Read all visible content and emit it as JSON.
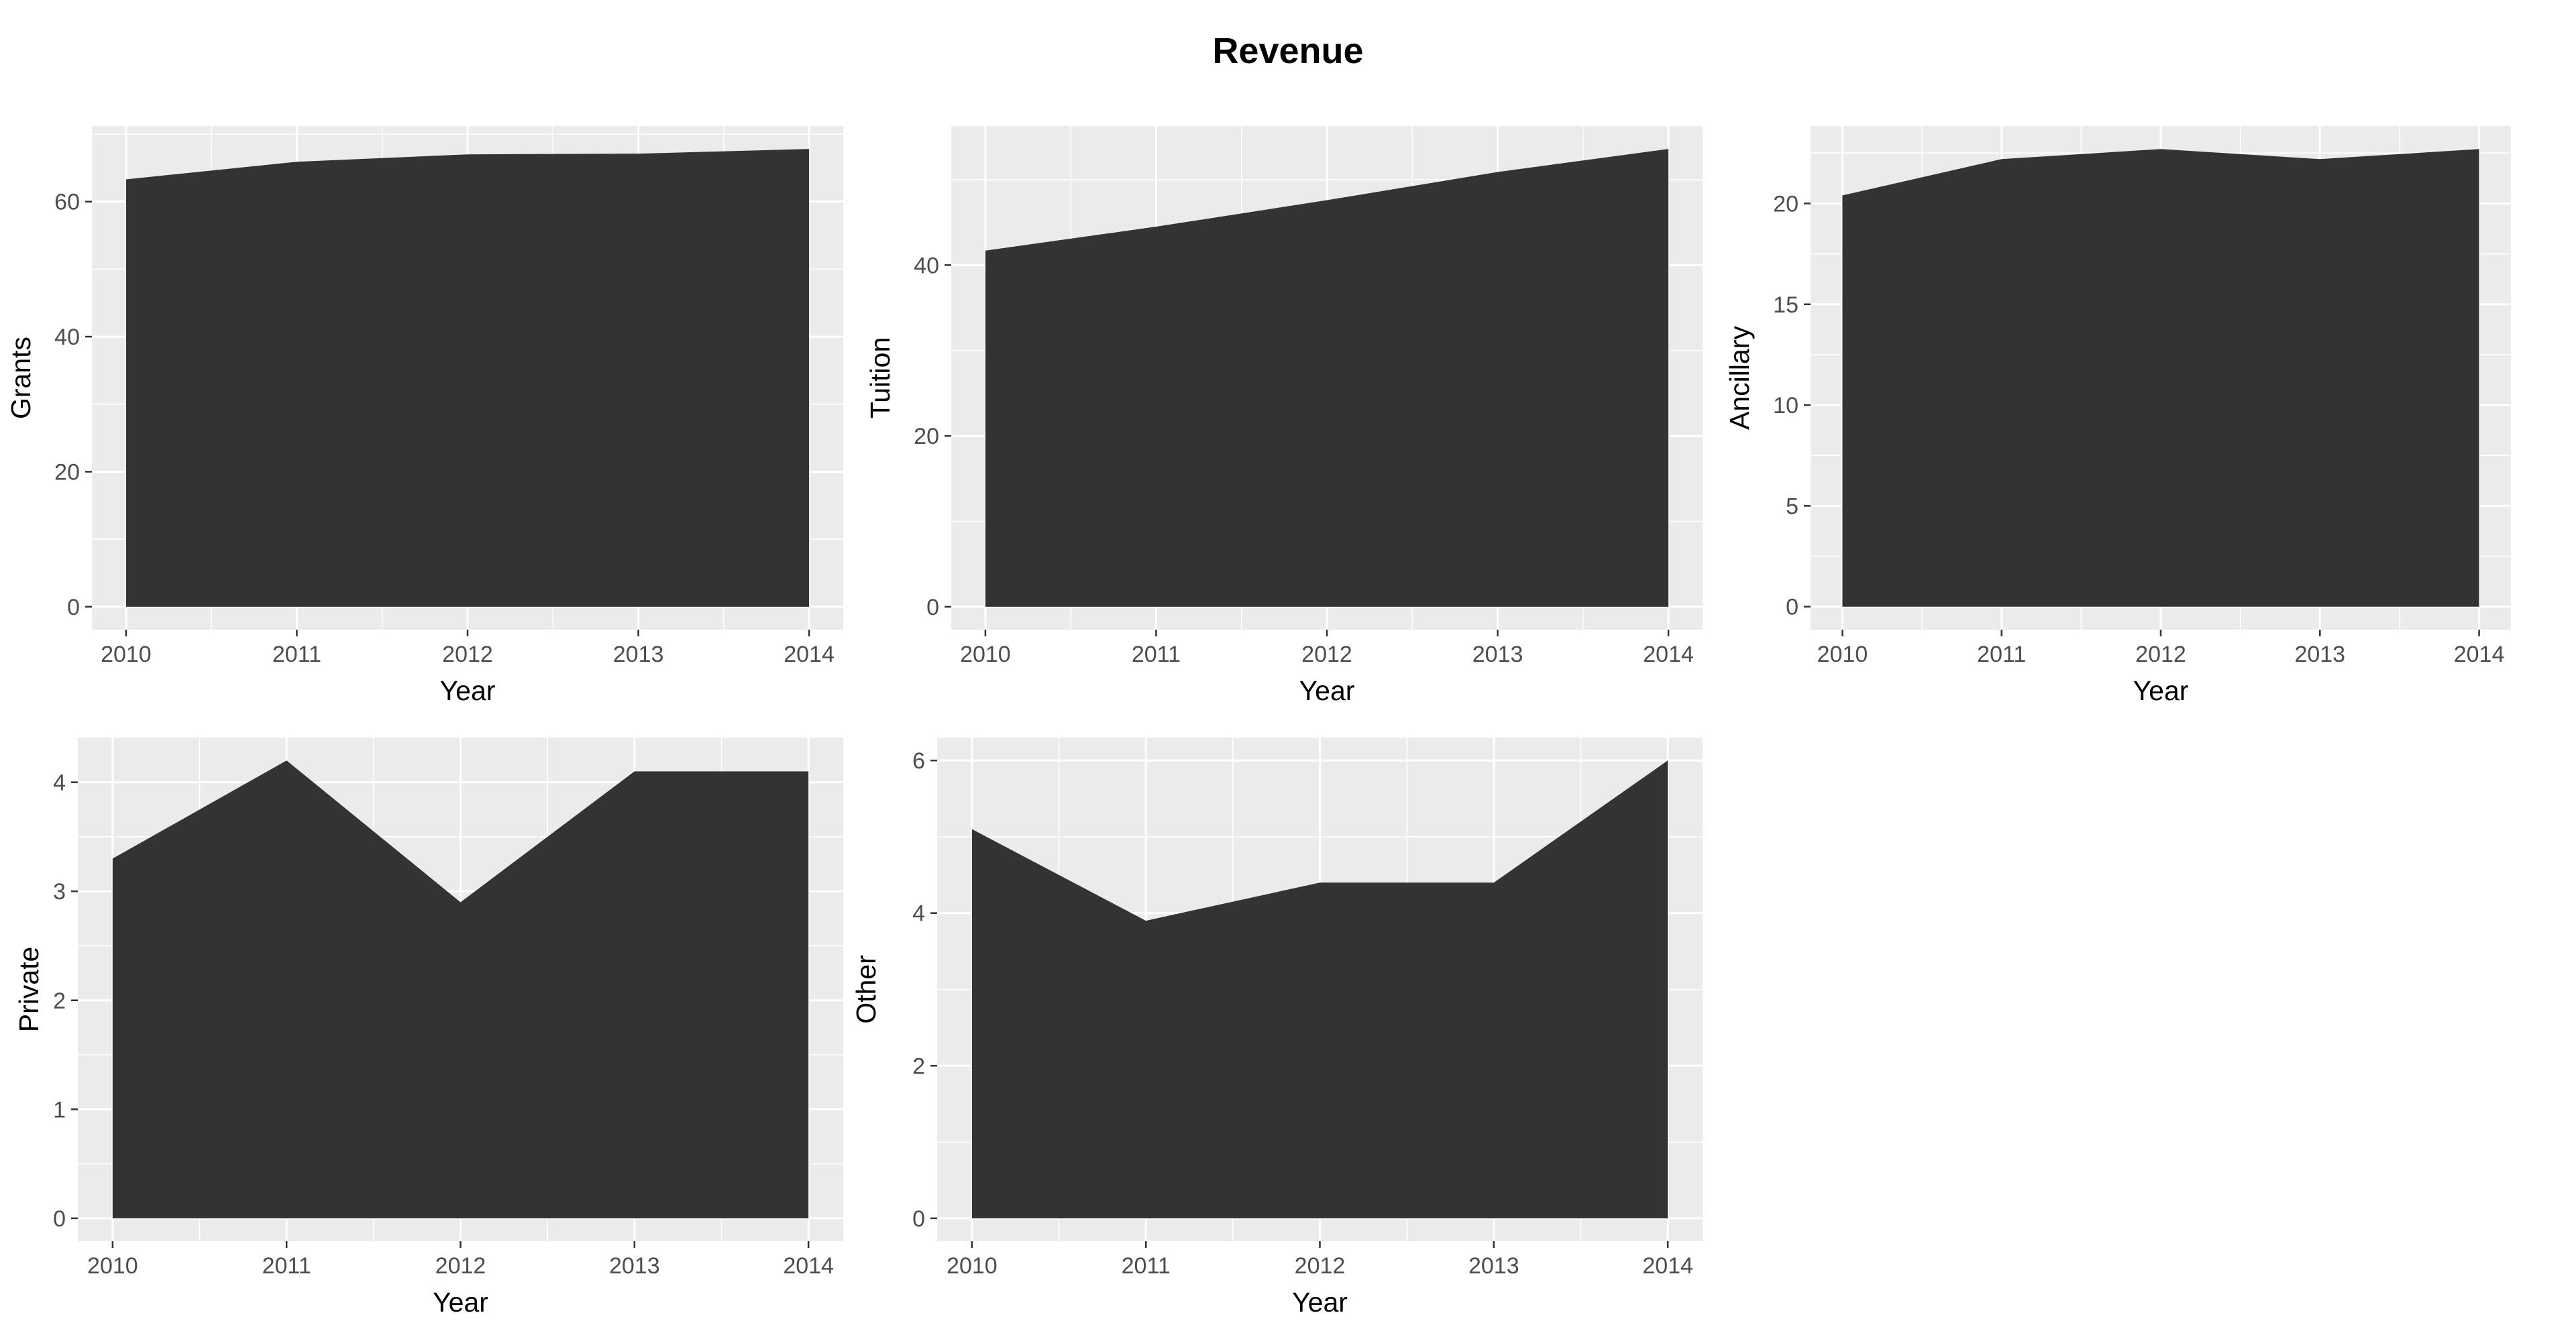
{
  "title": "Revenue",
  "colors": {
    "panel_background": "#EBEBEB",
    "grid_line": "#FFFFFF",
    "area_fill": "#333333",
    "tick_text": "#4D4D4D",
    "tick_mark": "#333333"
  },
  "chart_data": [
    {
      "type": "area",
      "xlabel": "Year",
      "ylabel": "Grants",
      "x": [
        2010,
        2011,
        2012,
        2013,
        2014
      ],
      "y": [
        63.3,
        65.9,
        67.0,
        67.1,
        67.8
      ],
      "xlim": [
        2009.8,
        2014.2
      ],
      "ylim": [
        -3.39,
        71.19
      ],
      "y_ticks": [
        0,
        20,
        40,
        60
      ],
      "x_ticks": [
        2010,
        2011,
        2012,
        2013,
        2014
      ],
      "grid": true
    },
    {
      "type": "area",
      "xlabel": "Year",
      "ylabel": "Tuition",
      "x": [
        2010,
        2011,
        2012,
        2013,
        2014
      ],
      "y": [
        41.7,
        44.5,
        47.6,
        50.9,
        53.6
      ],
      "xlim": [
        2009.8,
        2014.2
      ],
      "ylim": [
        -2.68,
        56.28
      ],
      "y_ticks": [
        0,
        20,
        40
      ],
      "x_ticks": [
        2010,
        2011,
        2012,
        2013,
        2014
      ],
      "grid": true
    },
    {
      "type": "area",
      "xlabel": "Year",
      "ylabel": "Ancillary",
      "x": [
        2010,
        2011,
        2012,
        2013,
        2014
      ],
      "y": [
        20.4,
        22.2,
        22.7,
        22.2,
        22.7
      ],
      "xlim": [
        2009.8,
        2014.2
      ],
      "ylim": [
        -1.14,
        23.84
      ],
      "y_ticks": [
        0,
        5,
        10,
        15,
        20
      ],
      "x_ticks": [
        2010,
        2011,
        2012,
        2013,
        2014
      ],
      "grid": true
    },
    {
      "type": "area",
      "xlabel": "Year",
      "ylabel": "Private",
      "x": [
        2010,
        2011,
        2012,
        2013,
        2014
      ],
      "y": [
        3.3,
        4.2,
        2.9,
        4.1,
        4.1
      ],
      "xlim": [
        2009.8,
        2014.2
      ],
      "ylim": [
        -0.21,
        4.41
      ],
      "y_ticks": [
        0,
        1,
        2,
        3,
        4
      ],
      "x_ticks": [
        2010,
        2011,
        2012,
        2013,
        2014
      ],
      "grid": true
    },
    {
      "type": "area",
      "xlabel": "Year",
      "ylabel": "Other",
      "x": [
        2010,
        2011,
        2012,
        2013,
        2014
      ],
      "y": [
        5.1,
        3.9,
        4.4,
        4.4,
        6.0
      ],
      "xlim": [
        2009.8,
        2014.2
      ],
      "ylim": [
        -0.3,
        6.3
      ],
      "y_ticks": [
        0,
        2,
        4,
        6
      ],
      "x_ticks": [
        2010,
        2011,
        2012,
        2013,
        2014
      ],
      "grid": true
    }
  ]
}
